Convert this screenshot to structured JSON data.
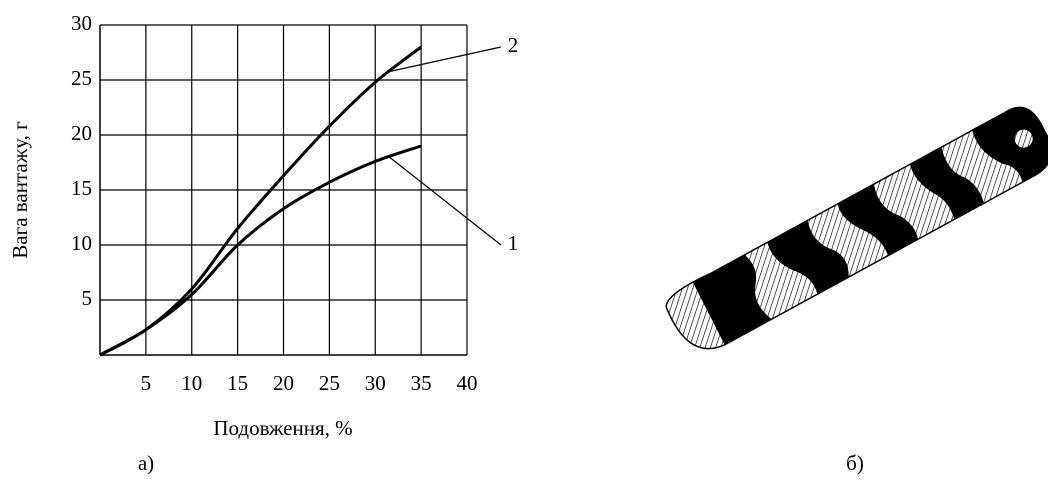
{
  "chart_data": {
    "type": "line",
    "x": [
      0,
      5,
      10,
      15,
      20,
      25,
      30,
      35
    ],
    "series": [
      {
        "name": "1",
        "color": "#000000",
        "values": [
          0,
          2.3,
          5.5,
          10,
          13.3,
          15.7,
          17.6,
          19
        ]
      },
      {
        "name": "2",
        "color": "#000000",
        "values": [
          0,
          2.3,
          6,
          11.5,
          16.3,
          20.8,
          24.8,
          28
        ]
      }
    ],
    "xlabel": "Подовження, %",
    "ylabel": "Вага вантажу, г",
    "xlim": [
      0,
      40
    ],
    "ylim": [
      0,
      30
    ],
    "xticks": [
      5,
      10,
      15,
      20,
      25,
      30,
      35,
      40
    ],
    "yticks": [
      5,
      10,
      15,
      20,
      25,
      30
    ],
    "grid": true
  },
  "captions": [
    "а)",
    "б)"
  ]
}
